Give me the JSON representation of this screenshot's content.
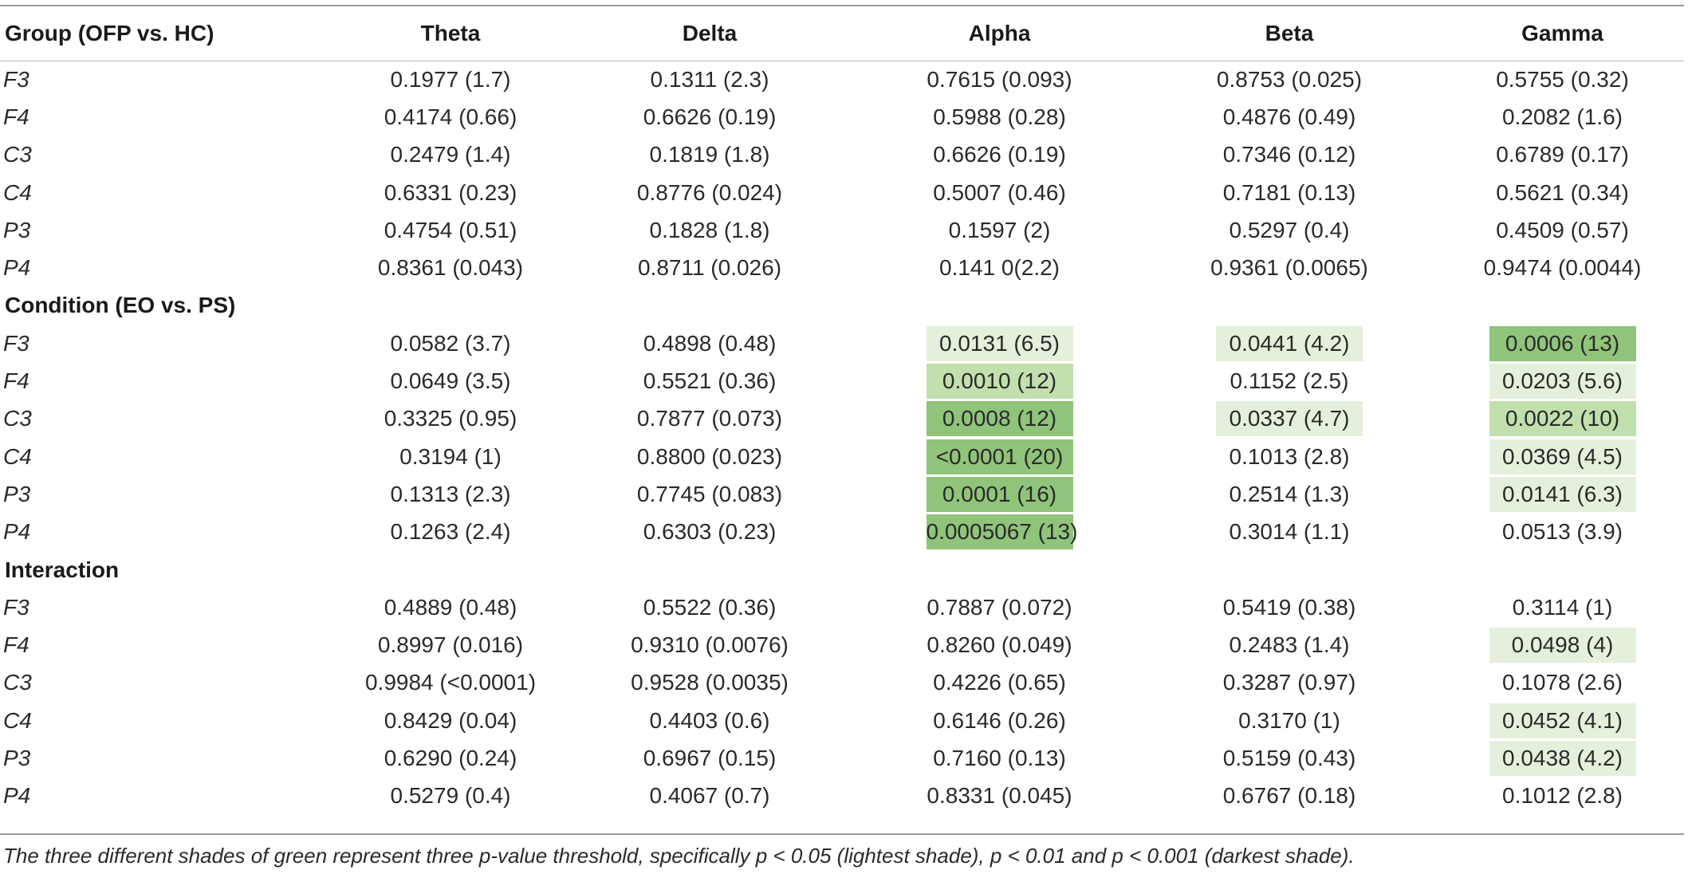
{
  "columns": [
    "Group (OFP vs. HC)",
    "Theta",
    "Delta",
    "Alpha",
    "Beta",
    "Gamma"
  ],
  "sections": [
    {
      "title": "",
      "rows": [
        {
          "label": "F3",
          "cells": [
            {
              "v": "0.1977 (1.7)",
              "shade": 0
            },
            {
              "v": "0.1311 (2.3)",
              "shade": 0
            },
            {
              "v": "0.7615 (0.093)",
              "shade": 0
            },
            {
              "v": "0.8753 (0.025)",
              "shade": 0
            },
            {
              "v": "0.5755 (0.32)",
              "shade": 0
            }
          ]
        },
        {
          "label": "F4",
          "cells": [
            {
              "v": "0.4174 (0.66)",
              "shade": 0
            },
            {
              "v": "0.6626 (0.19)",
              "shade": 0
            },
            {
              "v": "0.5988 (0.28)",
              "shade": 0
            },
            {
              "v": "0.4876 (0.49)",
              "shade": 0
            },
            {
              "v": "0.2082 (1.6)",
              "shade": 0
            }
          ]
        },
        {
          "label": "C3",
          "cells": [
            {
              "v": "0.2479 (1.4)",
              "shade": 0
            },
            {
              "v": "0.1819 (1.8)",
              "shade": 0
            },
            {
              "v": "0.6626 (0.19)",
              "shade": 0
            },
            {
              "v": "0.7346 (0.12)",
              "shade": 0
            },
            {
              "v": "0.6789 (0.17)",
              "shade": 0
            }
          ]
        },
        {
          "label": "C4",
          "cells": [
            {
              "v": "0.6331 (0.23)",
              "shade": 0
            },
            {
              "v": "0.8776 (0.024)",
              "shade": 0
            },
            {
              "v": "0.5007 (0.46)",
              "shade": 0
            },
            {
              "v": "0.7181 (0.13)",
              "shade": 0
            },
            {
              "v": "0.5621 (0.34)",
              "shade": 0
            }
          ]
        },
        {
          "label": "P3",
          "cells": [
            {
              "v": "0.4754 (0.51)",
              "shade": 0
            },
            {
              "v": "0.1828 (1.8)",
              "shade": 0
            },
            {
              "v": "0.1597 (2)",
              "shade": 0
            },
            {
              "v": "0.5297 (0.4)",
              "shade": 0
            },
            {
              "v": "0.4509 (0.57)",
              "shade": 0
            }
          ]
        },
        {
          "label": "P4",
          "cells": [
            {
              "v": "0.8361 (0.043)",
              "shade": 0
            },
            {
              "v": "0.8711 (0.026)",
              "shade": 0
            },
            {
              "v": "0.141 0(2.2)",
              "shade": 0
            },
            {
              "v": "0.9361 (0.0065)",
              "shade": 0
            },
            {
              "v": "0.9474 (0.0044)",
              "shade": 0
            }
          ]
        }
      ]
    },
    {
      "title": "Condition (EO vs. PS)",
      "rows": [
        {
          "label": "F3",
          "cells": [
            {
              "v": "0.0582 (3.7)",
              "shade": 0
            },
            {
              "v": "0.4898 (0.48)",
              "shade": 0
            },
            {
              "v": "0.0131 (6.5)",
              "shade": 1
            },
            {
              "v": "0.0441 (4.2)",
              "shade": 1
            },
            {
              "v": "0.0006 (13)",
              "shade": 3
            }
          ]
        },
        {
          "label": "F4",
          "cells": [
            {
              "v": "0.0649 (3.5)",
              "shade": 0
            },
            {
              "v": "0.5521 (0.36)",
              "shade": 0
            },
            {
              "v": "0.0010 (12)",
              "shade": 2
            },
            {
              "v": "0.1152 (2.5)",
              "shade": 0
            },
            {
              "v": "0.0203 (5.6)",
              "shade": 1
            }
          ]
        },
        {
          "label": "C3",
          "cells": [
            {
              "v": "0.3325 (0.95)",
              "shade": 0
            },
            {
              "v": "0.7877 (0.073)",
              "shade": 0
            },
            {
              "v": "0.0008 (12)",
              "shade": 3
            },
            {
              "v": "0.0337 (4.7)",
              "shade": 1
            },
            {
              "v": "0.0022 (10)",
              "shade": 2
            }
          ]
        },
        {
          "label": "C4",
          "cells": [
            {
              "v": "0.3194 (1)",
              "shade": 0
            },
            {
              "v": "0.8800 (0.023)",
              "shade": 0
            },
            {
              "v": "<0.0001 (20)",
              "shade": 3
            },
            {
              "v": "0.1013 (2.8)",
              "shade": 0
            },
            {
              "v": "0.0369 (4.5)",
              "shade": 1
            }
          ]
        },
        {
          "label": "P3",
          "cells": [
            {
              "v": "0.1313 (2.3)",
              "shade": 0
            },
            {
              "v": "0.7745 (0.083)",
              "shade": 0
            },
            {
              "v": "0.0001 (16)",
              "shade": 3
            },
            {
              "v": "0.2514 (1.3)",
              "shade": 0
            },
            {
              "v": "0.0141 (6.3)",
              "shade": 1
            }
          ]
        },
        {
          "label": "P4",
          "cells": [
            {
              "v": "0.1263 (2.4)",
              "shade": 0
            },
            {
              "v": "0.6303 (0.23)",
              "shade": 0
            },
            {
              "v": "0.0005067 (13)",
              "shade": 3
            },
            {
              "v": "0.3014 (1.1)",
              "shade": 0
            },
            {
              "v": "0.0513 (3.9)",
              "shade": 0
            }
          ]
        }
      ]
    },
    {
      "title": "Interaction",
      "rows": [
        {
          "label": "F3",
          "cells": [
            {
              "v": "0.4889 (0.48)",
              "shade": 0
            },
            {
              "v": "0.5522 (0.36)",
              "shade": 0
            },
            {
              "v": "0.7887 (0.072)",
              "shade": 0
            },
            {
              "v": "0.5419 (0.38)",
              "shade": 0
            },
            {
              "v": "0.3114 (1)",
              "shade": 0
            }
          ]
        },
        {
          "label": "F4",
          "cells": [
            {
              "v": "0.8997 (0.016)",
              "shade": 0
            },
            {
              "v": "0.9310 (0.0076)",
              "shade": 0
            },
            {
              "v": "0.8260 (0.049)",
              "shade": 0
            },
            {
              "v": "0.2483 (1.4)",
              "shade": 0
            },
            {
              "v": "0.0498 (4)",
              "shade": 1
            }
          ]
        },
        {
          "label": "C3",
          "cells": [
            {
              "v": "0.9984 (<0.0001)",
              "shade": 0
            },
            {
              "v": "0.9528 (0.0035)",
              "shade": 0
            },
            {
              "v": "0.4226 (0.65)",
              "shade": 0
            },
            {
              "v": "0.3287 (0.97)",
              "shade": 0
            },
            {
              "v": "0.1078 (2.6)",
              "shade": 0
            }
          ]
        },
        {
          "label": "C4",
          "cells": [
            {
              "v": "0.8429 (0.04)",
              "shade": 0
            },
            {
              "v": "0.4403 (0.6)",
              "shade": 0
            },
            {
              "v": "0.6146 (0.26)",
              "shade": 0
            },
            {
              "v": "0.3170 (1)",
              "shade": 0
            },
            {
              "v": "0.0452 (4.1)",
              "shade": 1
            }
          ]
        },
        {
          "label": "P3",
          "cells": [
            {
              "v": "0.6290 (0.24)",
              "shade": 0
            },
            {
              "v": "0.6967 (0.15)",
              "shade": 0
            },
            {
              "v": "0.7160 (0.13)",
              "shade": 0
            },
            {
              "v": "0.5159 (0.43)",
              "shade": 0
            },
            {
              "v": "0.0438 (4.2)",
              "shade": 1
            }
          ]
        },
        {
          "label": "P4",
          "cells": [
            {
              "v": "0.5279 (0.4)",
              "shade": 0
            },
            {
              "v": "0.4067 (0.7)",
              "shade": 0
            },
            {
              "v": "0.8331 (0.045)",
              "shade": 0
            },
            {
              "v": "0.6767 (0.18)",
              "shade": 0
            },
            {
              "v": "0.1012 (2.8)",
              "shade": 0
            }
          ]
        }
      ]
    }
  ],
  "footnote": "The three different shades of green represent three p-value threshold, specifically p < 0.05 (lightest shade), p < 0.01 and p < 0.001 (darkest shade).",
  "colors": {
    "shade_p005": "#e4f0db",
    "shade_p001": "#c2dfae",
    "shade_p0001": "#8fc47a"
  }
}
